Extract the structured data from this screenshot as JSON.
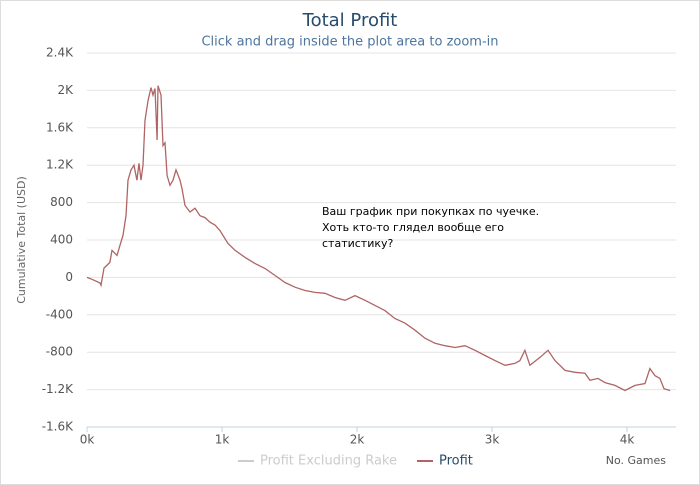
{
  "chart_data": {
    "type": "line",
    "title": "Total Profit",
    "subtitle": "Click and drag inside the plot area to zoom-in",
    "x_label": "No. Games",
    "y_label": "Cumulative Total (USD)",
    "annotation": [
      "Ваш график при покупках по чуечке.",
      "Хоть кто-то глядел вообще его",
      "статистику?"
    ],
    "xlim": [
      0,
      4363
    ],
    "ylim": [
      -1600,
      2400
    ],
    "xticks": [
      {
        "value": 0,
        "label": "0k"
      },
      {
        "value": 1000,
        "label": "1k"
      },
      {
        "value": 2000,
        "label": "2k"
      },
      {
        "value": 3000,
        "label": "3k"
      },
      {
        "value": 4000,
        "label": "4k"
      }
    ],
    "yticks": [
      {
        "value": -1600,
        "label": "-1.6K"
      },
      {
        "value": -1200,
        "label": "-1.2K"
      },
      -800,
      -400,
      0,
      400,
      800,
      {
        "value": 1200,
        "label": "1.2K"
      },
      {
        "value": 1600,
        "label": "1.6K"
      },
      {
        "value": 2000,
        "label": "2K"
      },
      {
        "value": 2400,
        "label": "2.4K"
      }
    ],
    "grid": true,
    "x": [
      0,
      37,
      96,
      104,
      126,
      170,
      185,
      222,
      244,
      267,
      289,
      304,
      326,
      348,
      370,
      385,
      400,
      415,
      430,
      452,
      474,
      489,
      504,
      519,
      526,
      548,
      563,
      578,
      593,
      615,
      637,
      659,
      689,
      704,
      726,
      763,
      800,
      837,
      874,
      911,
      948,
      985,
      1044,
      1096,
      1170,
      1244,
      1319,
      1393,
      1467,
      1541,
      1615,
      1689,
      1763,
      1837,
      1911,
      1985,
      2059,
      2133,
      2207,
      2281,
      2356,
      2430,
      2504,
      2578,
      2652,
      2726,
      2800,
      2874,
      2948,
      3022,
      3096,
      3170,
      3207,
      3244,
      3281,
      3356,
      3415,
      3467,
      3541,
      3615,
      3689,
      3726,
      3785,
      3837,
      3911,
      3985,
      4059,
      4133,
      4170,
      4207,
      4244,
      4274,
      4319
    ],
    "series": [
      {
        "name": "Profit Excluding Rake",
        "color": "#cccccc",
        "visible": false
      },
      {
        "name": "Profit",
        "color": "#b06464",
        "values": [
          0,
          -20,
          -60,
          -85,
          100,
          160,
          290,
          235,
          340,
          450,
          660,
          1040,
          1150,
          1200,
          1040,
          1220,
          1040,
          1200,
          1680,
          1890,
          2030,
          1950,
          2020,
          1470,
          2050,
          1950,
          1410,
          1440,
          1090,
          985,
          1040,
          1150,
          1040,
          950,
          770,
          700,
          740,
          660,
          640,
          590,
          560,
          500,
          365,
          290,
          215,
          150,
          95,
          20,
          -55,
          -105,
          -140,
          -160,
          -170,
          -215,
          -245,
          -195,
          -245,
          -300,
          -355,
          -440,
          -490,
          -565,
          -650,
          -705,
          -730,
          -750,
          -730,
          -780,
          -835,
          -890,
          -940,
          -920,
          -890,
          -780,
          -940,
          -855,
          -780,
          -890,
          -995,
          -1015,
          -1025,
          -1100,
          -1080,
          -1125,
          -1155,
          -1210,
          -1155,
          -1135,
          -975,
          -1050,
          -1080,
          -1190,
          -1210
        ]
      }
    ]
  }
}
